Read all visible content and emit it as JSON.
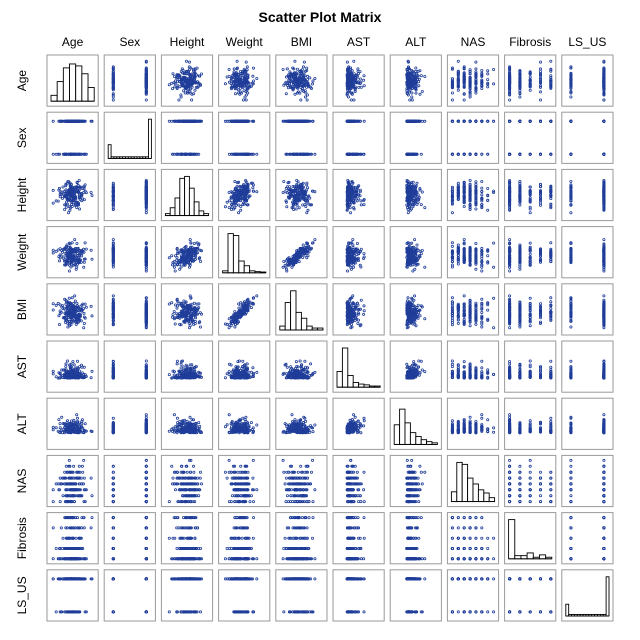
{
  "chart_data": {
    "type": "scatter-matrix",
    "title": "Scatter Plot Matrix",
    "variables": [
      "Age",
      "Sex",
      "Height",
      "Weight",
      "BMI",
      "AST",
      "ALT",
      "NAS",
      "Fibrosis",
      "LS_US"
    ],
    "marker_color": "#1f3d99",
    "histogram_stroke": "#000000",
    "histograms": {
      "Age": [
        0.15,
        0.5,
        0.85,
        0.95,
        0.9,
        0.7,
        0.35
      ],
      "Sex": [
        0.35,
        0.04,
        0.04,
        0.04,
        0.04,
        0.04,
        0.04,
        0.04,
        0.04,
        0.04,
        0.04,
        0.04,
        0.04,
        0.04,
        1.0
      ],
      "Height": [
        0.05,
        0.2,
        0.45,
        0.95,
        1.0,
        0.7,
        0.35,
        0.12,
        0.05
      ],
      "Weight": [
        0.05,
        1.0,
        0.95,
        0.3,
        0.18,
        0.05,
        0.03,
        0.02
      ],
      "BMI": [
        0.1,
        0.7,
        1.0,
        0.45,
        0.3,
        0.1,
        0.05,
        0.05
      ],
      "AST": [
        0.4,
        1.0,
        0.3,
        0.12,
        0.08,
        0.06,
        0.03,
        0.03
      ],
      "ALT": [
        0.5,
        0.9,
        0.55,
        0.3,
        0.2,
        0.12,
        0.07,
        0.04
      ],
      "NAS": [
        0.25,
        1.0,
        0.95,
        0.6,
        0.45,
        0.3,
        0.22,
        0.1
      ],
      "Fibrosis": [
        1.0,
        0.08,
        0.08,
        0.15,
        0.04,
        0.1,
        0.04
      ],
      "LS_US": [
        0.3,
        0.04,
        0.04,
        0.04,
        0.04,
        0.04,
        0.04,
        0.04,
        0.04,
        0.04,
        0.04,
        0.04,
        0.04,
        0.04,
        1.0
      ]
    }
  }
}
